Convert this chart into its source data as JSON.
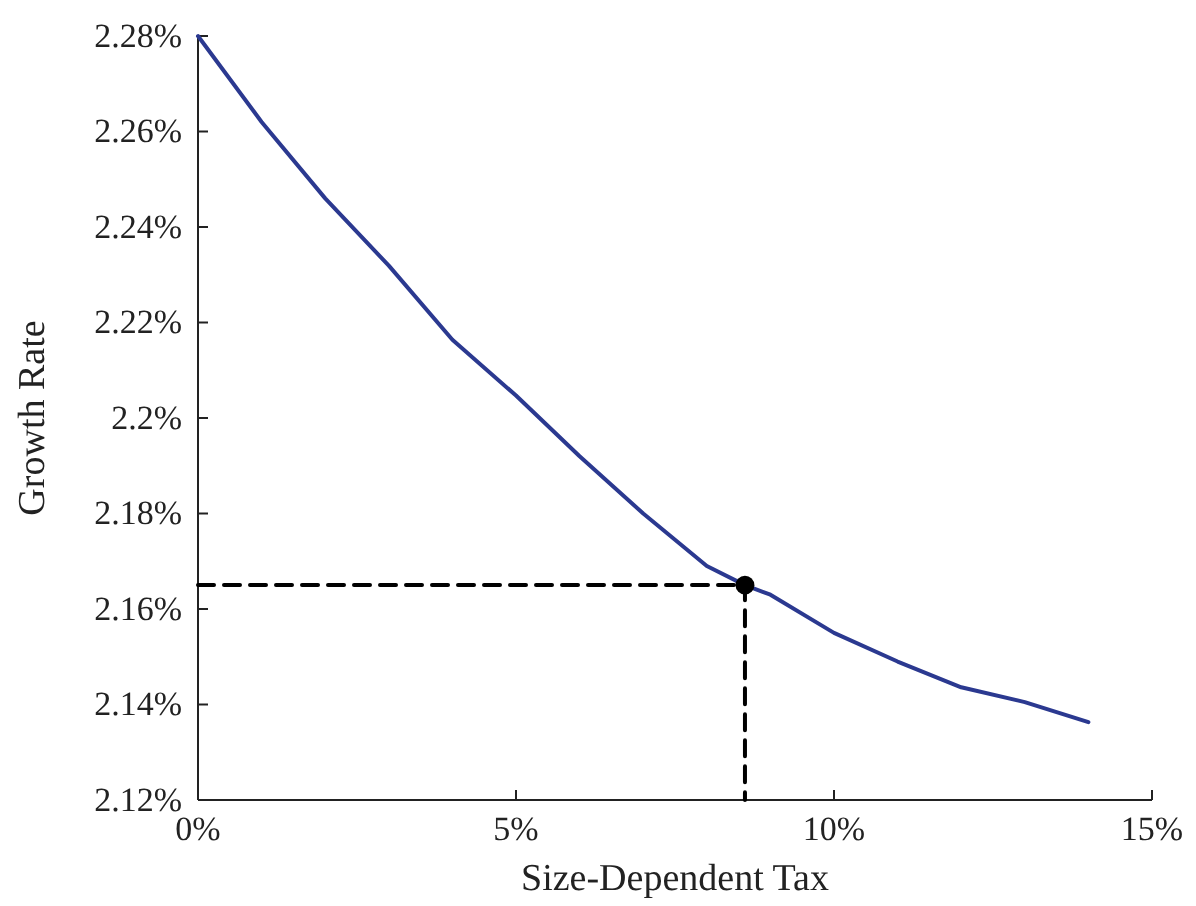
{
  "chart_data": {
    "type": "line",
    "xlabel": "Size-Dependent Tax",
    "ylabel": "Growth Rate",
    "xlim": [
      0,
      15
    ],
    "xticks": [
      {
        "value": 0,
        "label": "0%"
      },
      {
        "value": 5,
        "label": "5%"
      },
      {
        "value": 10,
        "label": "10%"
      },
      {
        "value": 15,
        "label": "15%"
      }
    ],
    "ylim": [
      2.12,
      2.28
    ],
    "yticks": [
      {
        "value": 2.12,
        "label": "2.12%"
      },
      {
        "value": 2.14,
        "label": "2.14%"
      },
      {
        "value": 2.16,
        "label": "2.16%"
      },
      {
        "value": 2.18,
        "label": "2.18%"
      },
      {
        "value": 2.2,
        "label": "2.2%"
      },
      {
        "value": 2.22,
        "label": "2.22%"
      },
      {
        "value": 2.24,
        "label": "2.24%"
      },
      {
        "value": 2.26,
        "label": "2.26%"
      },
      {
        "value": 2.28,
        "label": "2.28%"
      }
    ],
    "grid": false,
    "series": [
      {
        "color": "#2b3990",
        "line_style": "solid",
        "marker": "none",
        "x": [
          0,
          1,
          2,
          3,
          4,
          5,
          6,
          7,
          8,
          8.6,
          9,
          10,
          11,
          12,
          13,
          14
        ],
        "values": [
          2.28,
          2.262,
          2.246,
          2.2319,
          2.2164,
          2.2047,
          2.192,
          2.18,
          2.169,
          2.165,
          2.163,
          2.155,
          2.149,
          2.1436,
          2.1405,
          2.1363
        ]
      },
      {
        "type": "line",
        "color": "#000000",
        "line_style": "dashed",
        "marker": "none",
        "x": [
          0,
          8.6,
          8.6
        ],
        "values": [
          2.165,
          2.165,
          2.12
        ]
      },
      {
        "type": "scatter",
        "color": "#000000",
        "marker": "circle",
        "x": [
          8.6
        ],
        "values": [
          2.165
        ]
      }
    ]
  }
}
